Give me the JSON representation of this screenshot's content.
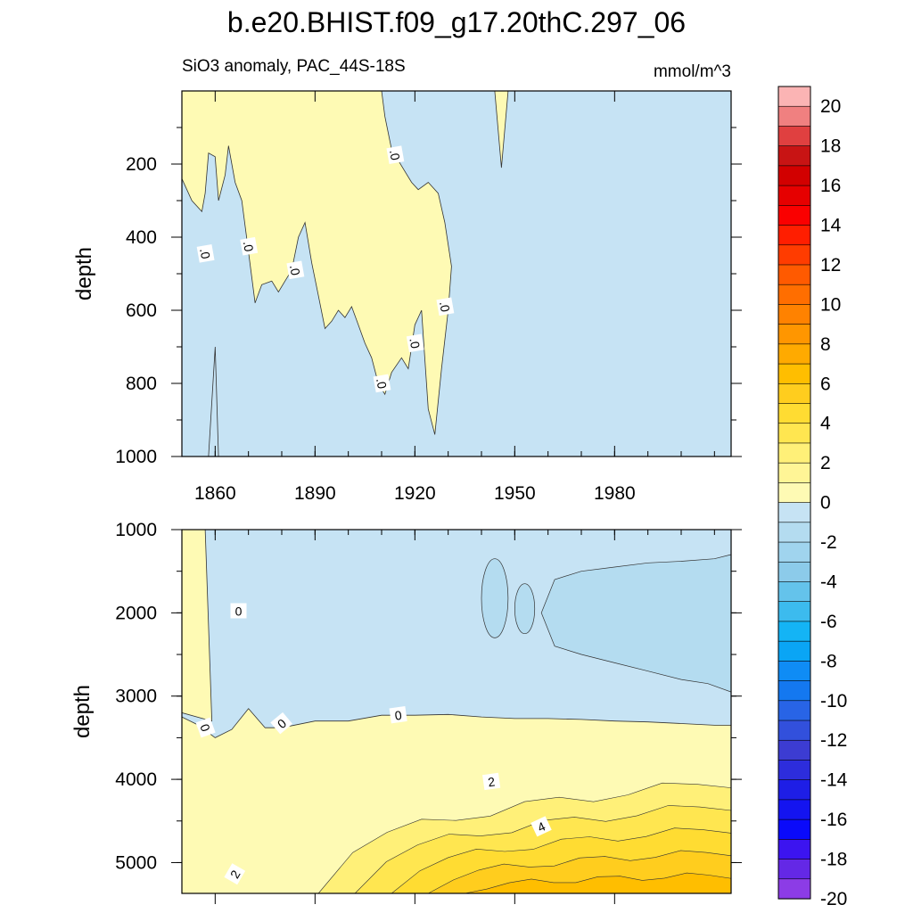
{
  "title": "b.e20.BHIST.f09_g17.20thC.297_06",
  "chart_data": [
    {
      "type": "contour",
      "panel": "upper",
      "left_string": "SiO3 anomaly, PAC_44S-18S",
      "right_string": "mmol/m^3",
      "ylabel": "depth",
      "xlim": [
        1850,
        2015
      ],
      "ylim": [
        1000,
        0
      ],
      "x_ticks": [
        "1860",
        "1890",
        "1920",
        "1950",
        "1980"
      ],
      "y_ticks": [
        "200",
        "400",
        "600",
        "800",
        "1000"
      ],
      "contour_labels": [
        ".0",
        ".0",
        ".0",
        ".0",
        ".0",
        ".0",
        ".0"
      ],
      "zero_line": [
        [
          1850,
          240
        ],
        [
          1853,
          300
        ],
        [
          1856,
          330
        ],
        [
          1857,
          280
        ],
        [
          1858,
          170
        ],
        [
          1860,
          180
        ],
        [
          1861,
          300
        ],
        [
          1863,
          230
        ],
        [
          1864,
          150
        ],
        [
          1866,
          250
        ],
        [
          1868,
          300
        ],
        [
          1870,
          440
        ],
        [
          1872,
          580
        ],
        [
          1874,
          530
        ],
        [
          1877,
          520
        ],
        [
          1879,
          550
        ],
        [
          1881,
          520
        ],
        [
          1883,
          490
        ],
        [
          1885,
          400
        ],
        [
          1887,
          360
        ],
        [
          1889,
          470
        ],
        [
          1891,
          560
        ],
        [
          1893,
          650
        ],
        [
          1895,
          630
        ],
        [
          1897,
          600
        ],
        [
          1899,
          620
        ],
        [
          1901,
          590
        ],
        [
          1903,
          640
        ],
        [
          1905,
          690
        ],
        [
          1907,
          730
        ],
        [
          1909,
          800
        ],
        [
          1911,
          830
        ],
        [
          1913,
          770
        ],
        [
          1916,
          730
        ],
        [
          1918,
          760
        ],
        [
          1920,
          640
        ],
        [
          1922,
          600
        ],
        [
          1924,
          870
        ],
        [
          1926,
          940
        ],
        [
          1928,
          760
        ],
        [
          1930,
          600
        ],
        [
          1931,
          480
        ],
        [
          1929,
          360
        ],
        [
          1927,
          280
        ],
        [
          1924,
          250
        ],
        [
          1921,
          270
        ],
        [
          1919,
          250
        ],
        [
          1917,
          220
        ],
        [
          1915,
          190
        ],
        [
          1913,
          160
        ],
        [
          1911,
          70
        ],
        [
          1910,
          0
        ]
      ],
      "shallow_feature_1945": [
        [
          1944,
          0
        ],
        [
          1946,
          210
        ],
        [
          1948,
          0
        ]
      ],
      "colors": {
        "pos_0_1": "#fefab4",
        "neg_0_1": "#c6e3f4"
      }
    },
    {
      "type": "contour",
      "panel": "lower",
      "ylabel": "depth",
      "xlim": [
        1850,
        2015
      ],
      "ylim": [
        1000,
        5370
      ],
      "y_ticks": [
        "1000",
        "2000",
        "3000",
        "4000",
        "5000"
      ],
      "contour_labels": [
        "0",
        "0",
        "0",
        "0",
        "2",
        "4",
        "2"
      ],
      "levels": [
        0,
        1,
        2,
        3,
        4,
        5,
        6,
        7,
        8,
        9,
        10
      ],
      "zero_line_y": [
        [
          1850,
          3250
        ],
        [
          1855,
          3350
        ],
        [
          1860,
          3500
        ],
        [
          1865,
          3400
        ],
        [
          1870,
          3150
        ],
        [
          1875,
          3380
        ],
        [
          1880,
          3380
        ],
        [
          1890,
          3300
        ],
        [
          1900,
          3300
        ],
        [
          1910,
          3230
        ],
        [
          1920,
          3230
        ],
        [
          1930,
          3220
        ],
        [
          1940,
          3250
        ],
        [
          1950,
          3270
        ],
        [
          1960,
          3270
        ],
        [
          1970,
          3280
        ],
        [
          1980,
          3300
        ],
        [
          1990,
          3310
        ],
        [
          2000,
          3330
        ],
        [
          2010,
          3350
        ],
        [
          2015,
          3350
        ]
      ],
      "neg_pockets": [
        {
          "level": -1,
          "region": "1940-1948, 1400-2400"
        },
        {
          "level": -1,
          "region": "1950-1956, 1700-2300"
        },
        {
          "level": -1,
          "region": "1956-2015, 1300-2900"
        }
      ]
    }
  ],
  "colorbar": {
    "labels": [
      "20",
      "18",
      "16",
      "14",
      "12",
      "10",
      "8",
      "6",
      "4",
      "2",
      "0",
      "-2",
      "-4",
      "-6",
      "-8",
      "-10",
      "-12",
      "-14",
      "-16",
      "-18",
      "-20"
    ],
    "colors": [
      "#fbb4b4",
      "#f08080",
      "#e04040",
      "#c81414",
      "#d20000",
      "#e60000",
      "#fa0000",
      "#ff1e00",
      "#ff3c00",
      "#ff5a00",
      "#ff6e00",
      "#ff8200",
      "#ff9600",
      "#ffaa00",
      "#ffbe00",
      "#ffcd1e",
      "#ffdc32",
      "#ffe650",
      "#fff078",
      "#fff596",
      "#fefab4",
      "#c6e3f4",
      "#b4dcf0",
      "#a0d4ee",
      "#8ccbea",
      "#64c3eb",
      "#3cbbee",
      "#14b4f5",
      "#0aa5f5",
      "#0f8cf5",
      "#1478f0",
      "#2864e6",
      "#3250dc",
      "#3c3cd2",
      "#2d2ddc",
      "#1e1ee6",
      "#1414f0",
      "#0a0afa",
      "#3c14f0",
      "#6428e6",
      "#8c3ce6"
    ]
  }
}
